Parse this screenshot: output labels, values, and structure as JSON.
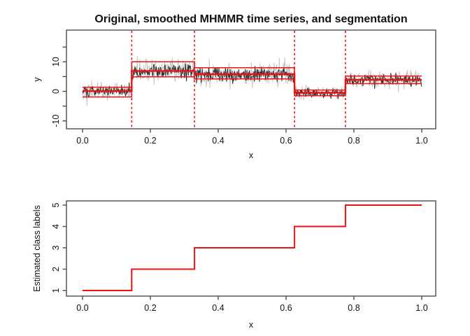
{
  "title": "Original, smoothed MHMMR time series, and segmentation",
  "colors": {
    "regression_red": "#ee1111",
    "boundary_red": "#ee1111",
    "original_series": "#c8c8c8",
    "smoothed_series": "#333333",
    "axis": "#4d4d4d",
    "text": "#111111"
  },
  "chart_data": [
    {
      "type": "line",
      "panel": "top",
      "title": "Original, smoothed MHMMR time series, and segmentation",
      "xlabel": "x",
      "ylabel": "y",
      "xlim": [
        0,
        1
      ],
      "ylim": [
        -12.7,
        20.7
      ],
      "grid": false,
      "legend": "none",
      "x_ticks": {
        "values": [
          0,
          0.2,
          0.4,
          0.6,
          0.8,
          1.0
        ],
        "labels": [
          "0.0",
          "0.2",
          "0.4",
          "0.6",
          "0.8",
          "1.0"
        ]
      },
      "y_ticks": {
        "all": [
          -10,
          -5,
          0,
          5,
          10,
          15
        ],
        "labeled": [
          -10,
          0,
          10
        ]
      },
      "n_points": 670,
      "boundary_lines_x": [
        0.145,
        0.33,
        0.625,
        0.775
      ],
      "segments": [
        {
          "x_start": 0.0,
          "x_end": 0.145,
          "mean": 0.1,
          "upper": 1.4,
          "lower": -1.9
        },
        {
          "x_start": 0.145,
          "x_end": 0.33,
          "mean": 6.9,
          "upper": 10.0,
          "lower": 4.9
        },
        {
          "x_start": 0.33,
          "x_end": 0.625,
          "mean": 5.8,
          "upper": 8.0,
          "lower": 4.2
        },
        {
          "x_start": 0.625,
          "x_end": 0.775,
          "mean": -0.45,
          "upper": 0.45,
          "lower": -1.5
        },
        {
          "x_start": 0.775,
          "x_end": 1.0,
          "mean": 3.9,
          "upper": 5.2,
          "lower": 2.6
        }
      ],
      "series": [
        {
          "name": "original",
          "color": "#c8c8c8",
          "seed": 42,
          "sd_by_segment": [
            1.5,
            2.1,
            2.0,
            1.2,
            1.5
          ]
        },
        {
          "name": "smoothed",
          "color": "#333333",
          "seed": 101,
          "sd_by_segment": [
            0.9,
            1.2,
            1.3,
            0.8,
            1.0
          ]
        }
      ]
    },
    {
      "type": "step",
      "panel": "bottom",
      "xlabel": "x",
      "ylabel": "Estimated class labels",
      "xlim": [
        0,
        1
      ],
      "ylim": [
        0.74,
        5.2
      ],
      "grid": false,
      "x_ticks": {
        "values": [
          0,
          0.2,
          0.4,
          0.6,
          0.8,
          1.0
        ],
        "labels": [
          "0.0",
          "0.2",
          "0.4",
          "0.6",
          "0.8",
          "1.0"
        ]
      },
      "y_ticks": {
        "all": [
          1,
          2,
          3,
          4,
          5
        ],
        "labeled": [
          1,
          2,
          3,
          4,
          5
        ]
      },
      "steps": [
        {
          "x_start": 0.0,
          "x_end": 0.145,
          "class": 1
        },
        {
          "x_start": 0.145,
          "x_end": 0.33,
          "class": 2
        },
        {
          "x_start": 0.33,
          "x_end": 0.625,
          "class": 3
        },
        {
          "x_start": 0.625,
          "x_end": 0.775,
          "class": 4
        },
        {
          "x_start": 0.775,
          "x_end": 1.0,
          "class": 5
        }
      ]
    }
  ]
}
